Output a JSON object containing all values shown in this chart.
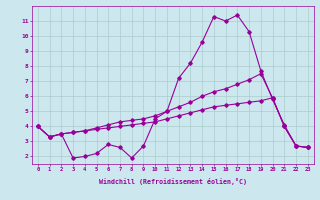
{
  "xlabel": "Windchill (Refroidissement éolien,°C)",
  "bg_color": "#cce8ee",
  "grid_color": "#aacccc",
  "line_color": "#990099",
  "xlim": [
    -0.5,
    23.5
  ],
  "ylim": [
    1.5,
    12.0
  ],
  "yticks": [
    2,
    3,
    4,
    5,
    6,
    7,
    8,
    9,
    10,
    11
  ],
  "xticks": [
    0,
    1,
    2,
    3,
    4,
    5,
    6,
    7,
    8,
    9,
    10,
    11,
    12,
    13,
    14,
    15,
    16,
    17,
    18,
    19,
    20,
    21,
    22,
    23
  ],
  "line1_x": [
    0,
    1,
    2,
    3,
    4,
    5,
    6,
    7,
    8,
    9,
    10,
    11,
    12,
    13,
    14,
    15,
    16,
    17,
    18,
    19,
    20,
    21,
    22,
    23
  ],
  "line1_y": [
    4.0,
    3.3,
    3.5,
    1.9,
    2.0,
    2.2,
    2.8,
    2.6,
    1.9,
    2.7,
    4.5,
    5.0,
    7.2,
    8.2,
    9.6,
    11.3,
    11.0,
    11.4,
    10.3,
    7.7,
    5.8,
    4.1,
    2.7,
    2.6
  ],
  "line2_x": [
    0,
    1,
    2,
    3,
    4,
    5,
    6,
    7,
    8,
    9,
    10,
    11,
    12,
    13,
    14,
    15,
    16,
    17,
    18,
    19,
    20,
    21,
    22,
    23
  ],
  "line2_y": [
    4.0,
    3.3,
    3.5,
    3.6,
    3.7,
    3.9,
    4.1,
    4.3,
    4.4,
    4.5,
    4.7,
    5.0,
    5.3,
    5.6,
    6.0,
    6.3,
    6.5,
    6.8,
    7.1,
    7.5,
    5.9,
    4.0,
    2.7,
    2.6
  ],
  "line3_x": [
    0,
    1,
    2,
    3,
    4,
    5,
    6,
    7,
    8,
    9,
    10,
    11,
    12,
    13,
    14,
    15,
    16,
    17,
    18,
    19,
    20,
    21,
    22,
    23
  ],
  "line3_y": [
    4.0,
    3.3,
    3.5,
    3.6,
    3.7,
    3.8,
    3.9,
    4.0,
    4.1,
    4.2,
    4.3,
    4.5,
    4.7,
    4.9,
    5.1,
    5.3,
    5.4,
    5.5,
    5.6,
    5.7,
    5.9,
    4.0,
    2.7,
    2.6
  ]
}
